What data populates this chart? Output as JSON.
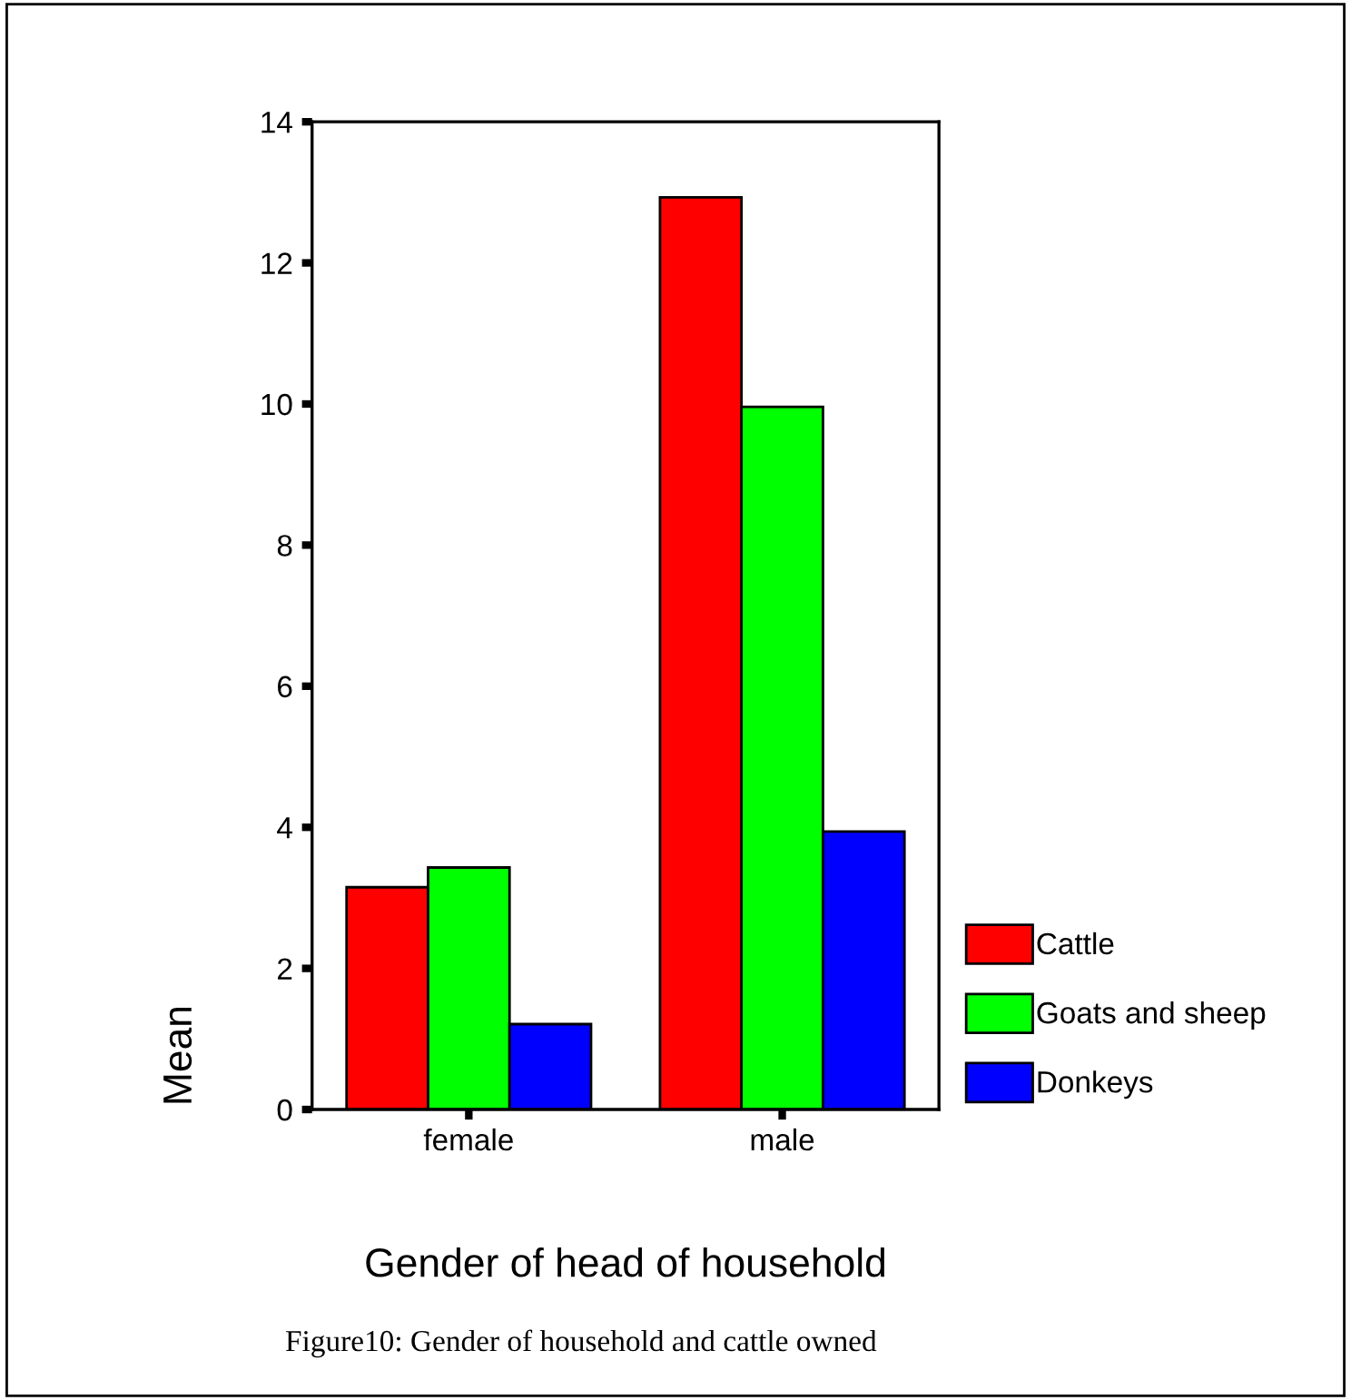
{
  "chart_data": {
    "type": "bar",
    "xlabel": "Gender of head of household",
    "ylabel": "Mean",
    "categories": [
      "female",
      "male"
    ],
    "series": [
      {
        "name": "Cattle",
        "color": "#ff0000",
        "values": [
          3.15,
          12.93
        ]
      },
      {
        "name": "Goats and sheep",
        "color": "#00ff00",
        "values": [
          3.43,
          9.96
        ]
      },
      {
        "name": "Donkeys",
        "color": "#0000ff",
        "values": [
          1.21,
          3.94
        ]
      }
    ],
    "ylim": [
      0,
      14
    ],
    "yticks": [
      0,
      2,
      4,
      6,
      8,
      10,
      12,
      14
    ],
    "grid": false,
    "legend": "bottom right",
    "annotations": [
      "Figure10: Gender of household and cattle owned"
    ]
  }
}
